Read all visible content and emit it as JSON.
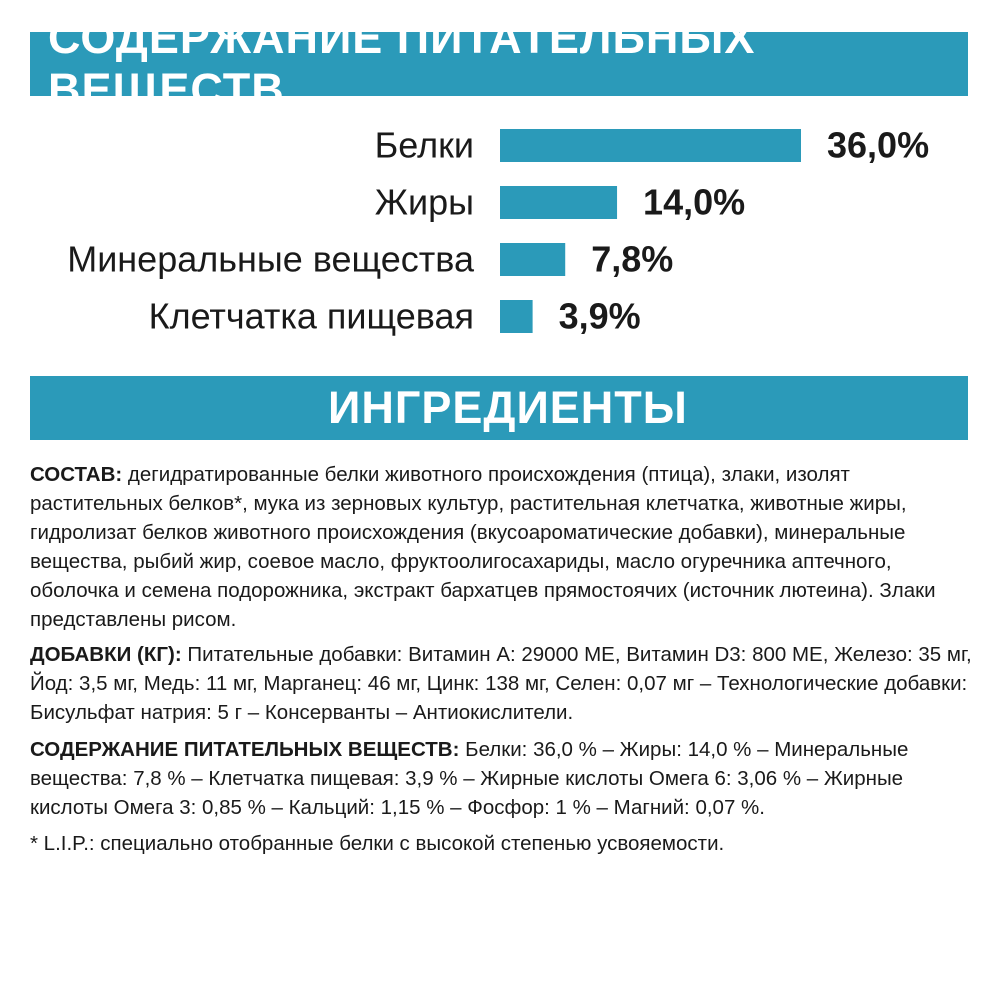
{
  "nutrients_header": "СОДЕРЖАНИЕ ПИТАТЕЛЬНЫХ ВЕЩЕСТВ",
  "ingredients_header": "ИНГРЕДИЕНТЫ",
  "accent_color": "#2b9ab9",
  "chart_data": {
    "type": "bar",
    "orientation": "horizontal",
    "categories": [
      "Белки",
      "Жиры",
      "Минеральные вещества",
      "Клетчатка пищевая"
    ],
    "values": [
      36.0,
      14.0,
      7.8,
      3.9
    ],
    "value_labels": [
      "36,0%",
      "14,0%",
      "7,8%",
      "3,9%"
    ],
    "unit": "%",
    "xlim": [
      0,
      36.0
    ],
    "color": "#2b9ab9",
    "grid": false
  },
  "sostav": {
    "label": "СОСТАВ:",
    "text": " дегидратированные белки животного происхождения (птица), злаки, изолят растительных белков*, мука из зерновых культур, растительная клетчатка, животные жиры, гидролизат белков животного происхождения (вкусоароматические добавки), минеральные вещества, рыбий жир, соевое масло, фруктоолигосахариды, масло огуречника аптечного, оболочка и семена подорожника, экстракт бархатцев прямостоячих (источник лютеина). Злаки представлены рисом."
  },
  "dobavki": {
    "label": "ДОБАВКИ (КГ):",
    "text": " Питательные добавки: Витамин А: 29000 МЕ, Витамин D3: 800 МЕ, Железо: 35 мг, Йод: 3,5 мг, Медь: 11 мг, Марганец: 46 мг, Цинк: 138 мг, Селен: 0,07 мг – Технологические добавки: Бисульфат натрия: 5 г – Консерванты – Антиокислители."
  },
  "content": {
    "label": "СОДЕРЖАНИЕ ПИТАТЕЛЬНЫХ ВЕЩЕСТВ:",
    "text": " Белки: 36,0 % – Жиры: 14,0 % – Минеральные вещества: 7,8 % – Клетчатка пищевая: 3,9 % – Жирные кислоты Омега 6: 3,06 % – Жирные кислоты Омега 3: 0,85 % – Кальций: 1,15 % – Фосфор: 1 % – Магний: 0,07 %."
  },
  "footnote": "* L.I.P.: специально отобранные белки с высокой степенью усвояемости."
}
